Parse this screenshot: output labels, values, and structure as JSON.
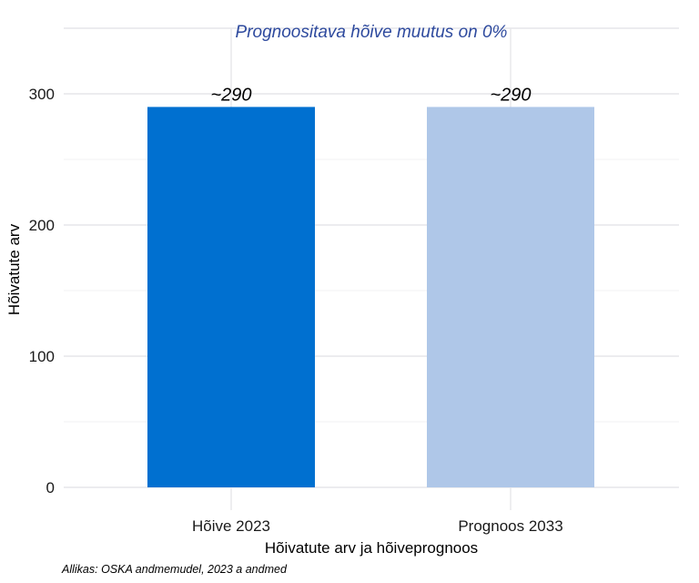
{
  "chart_data": {
    "type": "bar",
    "subtitle": "Prognoositava hõive muutus on 0%",
    "categories": [
      "Hõive 2023",
      "Prognoos 2033"
    ],
    "values": [
      290,
      290
    ],
    "data_labels": [
      "~290",
      "~290"
    ],
    "bar_colors": [
      "#0070d0",
      "#afc7e8"
    ],
    "xlabel": "Hõivatute arv ja hõiveprognoos",
    "ylabel": "Hõivatute arv",
    "ylim": [
      0,
      350
    ],
    "yticks": [
      0,
      100,
      200,
      300
    ],
    "grid": true,
    "caption": "Allikas: OSKA andmemudel, 2023 a andmed",
    "subtitle_color": "#2e4a9e"
  }
}
